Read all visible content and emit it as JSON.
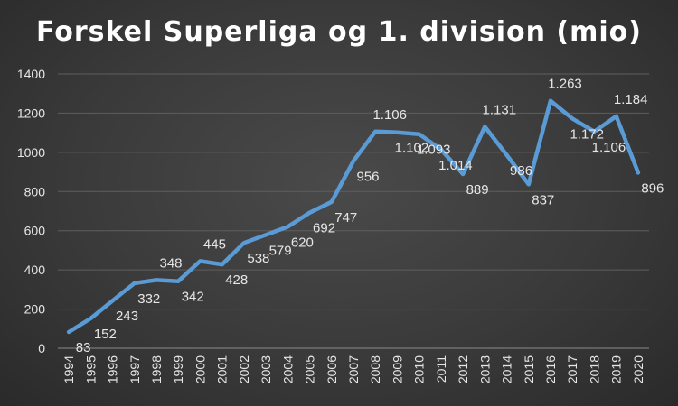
{
  "chart_data": {
    "type": "line",
    "title": "Forskel Superliga og 1. division (mio)",
    "xlabel": "",
    "ylabel": "",
    "ylim": [
      0,
      1400
    ],
    "yticks": [
      0,
      200,
      400,
      600,
      800,
      1000,
      1200,
      1400
    ],
    "grid": true,
    "legend": "none",
    "categories": [
      "1994",
      "1995",
      "1996",
      "1997",
      "1998",
      "1999",
      "2000",
      "2001",
      "2002",
      "2003",
      "2004",
      "2005",
      "2006",
      "2007",
      "2008",
      "2009",
      "2010",
      "2011",
      "2012",
      "2013",
      "2014",
      "2015",
      "2016",
      "2017",
      "2018",
      "2019",
      "2020"
    ],
    "series": [
      {
        "values": [
          83,
          152,
          243,
          332,
          348,
          342,
          445,
          428,
          538,
          579,
          620,
          692,
          747,
          956,
          1106,
          1102,
          1093,
          1014,
          889,
          1131,
          986,
          837,
          1263,
          1172,
          1106,
          1184,
          896
        ],
        "labels": [
          "83",
          "152",
          "243",
          "332",
          "348",
          "342",
          "445",
          "428",
          "538",
          "579",
          "620",
          "692",
          "747",
          "956",
          "1.106",
          "1.102",
          "1.093",
          "1.014",
          "889",
          "1.131",
          "986",
          "837",
          "1.263",
          "1.172",
          "1.106",
          "1.184",
          "896"
        ],
        "color": "#5b9bd5"
      }
    ]
  }
}
